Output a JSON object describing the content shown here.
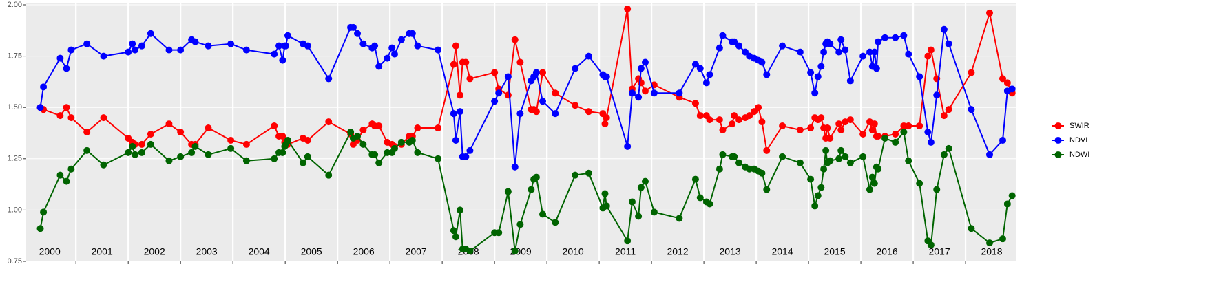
{
  "chart_data": {
    "type": "line",
    "x": [
      2000.32,
      2000.38,
      2000.7,
      2000.82,
      2000.91,
      2001.21,
      2001.53,
      2002.0,
      2002.08,
      2002.13,
      2002.26,
      2002.43,
      2002.78,
      2003.0,
      2003.21,
      2003.28,
      2003.53,
      2003.96,
      2004.26,
      2004.79,
      2004.88,
      2004.95,
      2004.99,
      2005.01,
      2005.05,
      2005.34,
      2005.43,
      2005.83,
      2006.25,
      2006.3,
      2006.38,
      2006.49,
      2006.66,
      2006.71,
      2006.79,
      2006.95,
      2007.04,
      2007.09,
      2007.22,
      2007.37,
      2007.43,
      2007.53,
      2007.92,
      2008.22,
      2008.26,
      2008.34,
      2008.39,
      2008.45,
      2008.53,
      2009.0,
      2009.08,
      2009.26,
      2009.39,
      2009.49,
      2009.7,
      2009.75,
      2009.8,
      2009.92,
      2010.16,
      2010.54,
      2010.8,
      2011.07,
      2011.11,
      2011.14,
      2011.54,
      2011.63,
      2011.75,
      2011.8,
      2011.88,
      2012.05,
      2012.53,
      2012.84,
      2012.93,
      2013.05,
      2013.11,
      2013.3,
      2013.36,
      2013.54,
      2013.58,
      2013.67,
      2013.79,
      2013.87,
      2013.96,
      2014.04,
      2014.11,
      2014.2,
      2014.5,
      2014.84,
      2015.04,
      2015.12,
      2015.18,
      2015.24,
      2015.29,
      2015.33,
      2015.36,
      2015.41,
      2015.58,
      2015.62,
      2015.7,
      2015.8,
      2016.04,
      2016.17,
      2016.22,
      2016.26,
      2016.3,
      2016.33,
      2016.46,
      2016.66,
      2016.82,
      2016.91,
      2017.12,
      2017.28,
      2017.34,
      2017.45,
      2017.59,
      2017.68,
      2018.11,
      2018.46,
      2018.71,
      2018.8,
      2018.89
    ],
    "series": [
      {
        "name": "SWIR",
        "color": "#ff0000",
        "values": [
          1.5,
          1.49,
          1.46,
          1.5,
          1.45,
          1.38,
          1.45,
          1.35,
          1.33,
          1.32,
          1.32,
          1.37,
          1.42,
          1.38,
          1.32,
          1.32,
          1.4,
          1.34,
          1.32,
          1.41,
          1.36,
          1.36,
          1.33,
          1.32,
          1.32,
          1.35,
          1.34,
          1.43,
          1.37,
          1.32,
          1.34,
          1.39,
          1.42,
          1.41,
          1.41,
          1.33,
          1.32,
          1.31,
          1.32,
          1.36,
          1.36,
          1.4,
          1.4,
          1.71,
          1.8,
          1.56,
          1.72,
          1.72,
          1.64,
          1.67,
          1.59,
          1.56,
          1.83,
          1.72,
          1.49,
          1.49,
          1.48,
          1.67,
          1.57,
          1.51,
          1.48,
          1.47,
          1.42,
          1.45,
          1.98,
          1.59,
          1.64,
          1.62,
          1.58,
          1.61,
          1.55,
          1.52,
          1.46,
          1.46,
          1.44,
          1.44,
          1.39,
          1.42,
          1.46,
          1.44,
          1.45,
          1.46,
          1.48,
          1.5,
          1.43,
          1.29,
          1.41,
          1.39,
          1.4,
          1.45,
          1.44,
          1.45,
          1.4,
          1.35,
          1.4,
          1.35,
          1.42,
          1.39,
          1.43,
          1.44,
          1.37,
          1.43,
          1.39,
          1.42,
          1.36,
          1.36,
          1.36,
          1.37,
          1.41,
          1.41,
          1.41,
          1.75,
          1.78,
          1.64,
          1.46,
          1.49,
          1.67,
          1.96,
          1.64,
          1.62,
          1.57
        ]
      },
      {
        "name": "NDVI",
        "color": "#0000ff",
        "values": [
          1.5,
          1.6,
          1.74,
          1.69,
          1.78,
          1.81,
          1.75,
          1.77,
          1.81,
          1.78,
          1.8,
          1.86,
          1.78,
          1.78,
          1.83,
          1.82,
          1.8,
          1.81,
          1.78,
          1.76,
          1.8,
          1.73,
          1.8,
          1.8,
          1.85,
          1.81,
          1.8,
          1.64,
          1.89,
          1.89,
          1.86,
          1.81,
          1.79,
          1.8,
          1.7,
          1.74,
          1.79,
          1.76,
          1.83,
          1.86,
          1.86,
          1.8,
          1.78,
          1.47,
          1.34,
          1.48,
          1.26,
          1.26,
          1.29,
          1.53,
          1.57,
          1.65,
          1.21,
          1.47,
          1.63,
          1.65,
          1.67,
          1.53,
          1.47,
          1.69,
          1.75,
          1.66,
          1.65,
          1.65,
          1.31,
          1.57,
          1.55,
          1.69,
          1.72,
          1.57,
          1.57,
          1.71,
          1.69,
          1.62,
          1.66,
          1.79,
          1.85,
          1.82,
          1.82,
          1.8,
          1.77,
          1.75,
          1.74,
          1.73,
          1.72,
          1.66,
          1.8,
          1.77,
          1.67,
          1.57,
          1.65,
          1.7,
          1.77,
          1.81,
          1.82,
          1.81,
          1.77,
          1.83,
          1.78,
          1.63,
          1.75,
          1.77,
          1.7,
          1.77,
          1.69,
          1.82,
          1.84,
          1.84,
          1.85,
          1.76,
          1.65,
          1.38,
          1.33,
          1.56,
          1.88,
          1.81,
          1.49,
          1.27,
          1.34,
          1.58,
          1.59
        ]
      },
      {
        "name": "NDWI",
        "color": "#006400",
        "values": [
          0.91,
          0.99,
          1.17,
          1.14,
          1.2,
          1.29,
          1.22,
          1.28,
          1.31,
          1.27,
          1.28,
          1.32,
          1.24,
          1.26,
          1.28,
          1.31,
          1.27,
          1.3,
          1.24,
          1.25,
          1.28,
          1.28,
          1.31,
          1.32,
          1.34,
          1.23,
          1.26,
          1.17,
          1.38,
          1.35,
          1.36,
          1.32,
          1.27,
          1.27,
          1.23,
          1.28,
          1.28,
          1.3,
          1.33,
          1.33,
          1.34,
          1.28,
          1.25,
          0.9,
          0.87,
          1.0,
          0.81,
          0.81,
          0.8,
          0.89,
          0.89,
          1.09,
          0.8,
          0.93,
          1.1,
          1.15,
          1.16,
          0.98,
          0.94,
          1.17,
          1.18,
          1.01,
          1.08,
          1.02,
          0.85,
          1.04,
          0.97,
          1.11,
          1.14,
          0.99,
          0.96,
          1.15,
          1.06,
          1.04,
          1.03,
          1.2,
          1.27,
          1.26,
          1.26,
          1.23,
          1.21,
          1.2,
          1.2,
          1.19,
          1.18,
          1.1,
          1.26,
          1.23,
          1.15,
          1.02,
          1.07,
          1.11,
          1.2,
          1.29,
          1.23,
          1.24,
          1.25,
          1.29,
          1.26,
          1.23,
          1.26,
          1.1,
          1.16,
          1.13,
          1.21,
          1.2,
          1.35,
          1.33,
          1.38,
          1.24,
          1.13,
          0.85,
          0.83,
          1.1,
          1.27,
          1.3,
          0.91,
          0.84,
          0.86,
          1.03,
          1.07
        ]
      }
    ],
    "xlim": [
      2000.05,
      2018.96
    ],
    "xticks": [
      {
        "value": 2000.5,
        "label": "2000"
      },
      {
        "value": 2001.5,
        "label": "2001"
      },
      {
        "value": 2002.5,
        "label": "2002"
      },
      {
        "value": 2003.5,
        "label": "2003"
      },
      {
        "value": 2004.5,
        "label": "2004"
      },
      {
        "value": 2005.5,
        "label": "2005"
      },
      {
        "value": 2006.5,
        "label": "2006"
      },
      {
        "value": 2007.5,
        "label": "2007"
      },
      {
        "value": 2008.5,
        "label": "2008"
      },
      {
        "value": 2009.5,
        "label": "2009"
      },
      {
        "value": 2010.5,
        "label": "2010"
      },
      {
        "value": 2011.5,
        "label": "2011"
      },
      {
        "value": 2012.5,
        "label": "2012"
      },
      {
        "value": 2013.5,
        "label": "2013"
      },
      {
        "value": 2014.5,
        "label": "2014"
      },
      {
        "value": 2015.5,
        "label": "2015"
      },
      {
        "value": 2016.5,
        "label": "2016"
      },
      {
        "value": 2017.5,
        "label": "2017"
      },
      {
        "value": 2018.5,
        "label": "2018"
      }
    ],
    "xgrid": [
      2001,
      2002,
      2003,
      2004,
      2005,
      2006,
      2007,
      2008,
      2009,
      2010,
      2011,
      2012,
      2013,
      2014,
      2015,
      2016,
      2017,
      2018
    ],
    "ylim": [
      0.75,
      2.0
    ],
    "yticks": [
      {
        "value": 0.75,
        "label": "0.75"
      },
      {
        "value": 1.0,
        "label": "1.00"
      },
      {
        "value": 1.25,
        "label": "1.25"
      },
      {
        "value": 1.5,
        "label": "1.50"
      },
      {
        "value": 1.75,
        "label": "1.75"
      },
      {
        "value": 2.0,
        "label": "2.00"
      }
    ],
    "grid": true,
    "legend": "right"
  }
}
